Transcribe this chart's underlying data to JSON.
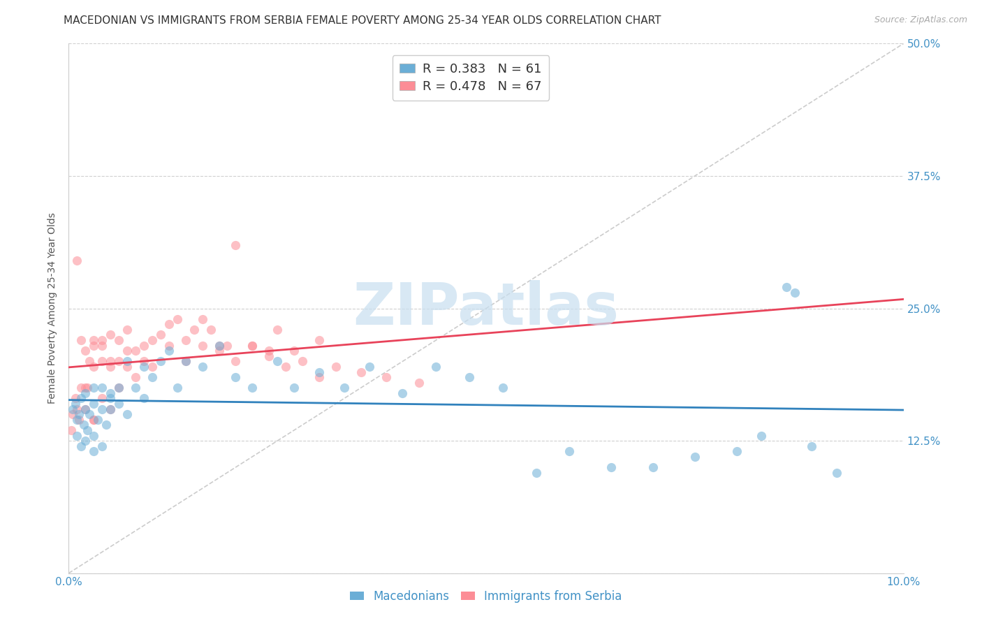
{
  "title": "MACEDONIAN VS IMMIGRANTS FROM SERBIA FEMALE POVERTY AMONG 25-34 YEAR OLDS CORRELATION CHART",
  "source": "Source: ZipAtlas.com",
  "ylabel": "Female Poverty Among 25-34 Year Olds",
  "xlim": [
    0.0,
    0.1
  ],
  "ylim": [
    0.0,
    0.5
  ],
  "xticks": [
    0.0,
    0.02,
    0.04,
    0.06,
    0.08,
    0.1
  ],
  "xticklabels": [
    "0.0%",
    "",
    "",
    "",
    "",
    "10.0%"
  ],
  "yticks": [
    0.0,
    0.125,
    0.25,
    0.375,
    0.5
  ],
  "yticklabels": [
    "",
    "12.5%",
    "25.0%",
    "37.5%",
    "50.0%"
  ],
  "macedonians_R": 0.383,
  "macedonians_N": 61,
  "serbia_R": 0.478,
  "serbia_N": 67,
  "blue_color": "#6baed6",
  "pink_color": "#fc8d96",
  "blue_line_color": "#3182bd",
  "pink_line_color": "#e8435a",
  "diagonal_color": "#cccccc",
  "macedonians_x": [
    0.0005,
    0.0008,
    0.001,
    0.001,
    0.0012,
    0.0015,
    0.0015,
    0.0018,
    0.002,
    0.002,
    0.002,
    0.0022,
    0.0025,
    0.003,
    0.003,
    0.003,
    0.003,
    0.0035,
    0.004,
    0.004,
    0.004,
    0.0045,
    0.005,
    0.005,
    0.005,
    0.006,
    0.006,
    0.007,
    0.007,
    0.008,
    0.009,
    0.009,
    0.01,
    0.011,
    0.012,
    0.013,
    0.014,
    0.016,
    0.018,
    0.02,
    0.022,
    0.025,
    0.027,
    0.03,
    0.033,
    0.036,
    0.04,
    0.044,
    0.048,
    0.052,
    0.056,
    0.06,
    0.065,
    0.07,
    0.075,
    0.08,
    0.083,
    0.086,
    0.089,
    0.092,
    0.087
  ],
  "macedonians_y": [
    0.155,
    0.16,
    0.13,
    0.145,
    0.15,
    0.12,
    0.165,
    0.14,
    0.125,
    0.155,
    0.17,
    0.135,
    0.15,
    0.115,
    0.13,
    0.16,
    0.175,
    0.145,
    0.12,
    0.155,
    0.175,
    0.14,
    0.155,
    0.17,
    0.165,
    0.16,
    0.175,
    0.15,
    0.2,
    0.175,
    0.165,
    0.195,
    0.185,
    0.2,
    0.21,
    0.175,
    0.2,
    0.195,
    0.215,
    0.185,
    0.175,
    0.2,
    0.175,
    0.19,
    0.175,
    0.195,
    0.17,
    0.195,
    0.185,
    0.175,
    0.095,
    0.115,
    0.1,
    0.1,
    0.11,
    0.115,
    0.13,
    0.27,
    0.12,
    0.095,
    0.265
  ],
  "serbia_x": [
    0.0003,
    0.0005,
    0.0008,
    0.001,
    0.001,
    0.0012,
    0.0015,
    0.0015,
    0.002,
    0.002,
    0.002,
    0.0022,
    0.0025,
    0.003,
    0.003,
    0.003,
    0.003,
    0.004,
    0.004,
    0.004,
    0.005,
    0.005,
    0.005,
    0.006,
    0.006,
    0.007,
    0.007,
    0.008,
    0.009,
    0.01,
    0.011,
    0.012,
    0.013,
    0.014,
    0.015,
    0.016,
    0.017,
    0.018,
    0.019,
    0.02,
    0.022,
    0.024,
    0.025,
    0.027,
    0.03,
    0.003,
    0.004,
    0.005,
    0.006,
    0.007,
    0.008,
    0.009,
    0.01,
    0.012,
    0.014,
    0.016,
    0.018,
    0.02,
    0.022,
    0.024,
    0.026,
    0.028,
    0.03,
    0.032,
    0.035,
    0.038,
    0.042
  ],
  "serbia_y": [
    0.135,
    0.15,
    0.165,
    0.155,
    0.295,
    0.145,
    0.175,
    0.22,
    0.155,
    0.175,
    0.21,
    0.175,
    0.2,
    0.145,
    0.195,
    0.215,
    0.22,
    0.165,
    0.2,
    0.22,
    0.155,
    0.195,
    0.225,
    0.175,
    0.2,
    0.195,
    0.23,
    0.21,
    0.215,
    0.22,
    0.225,
    0.235,
    0.24,
    0.22,
    0.23,
    0.24,
    0.23,
    0.215,
    0.215,
    0.31,
    0.215,
    0.21,
    0.23,
    0.21,
    0.22,
    0.145,
    0.215,
    0.2,
    0.22,
    0.21,
    0.185,
    0.2,
    0.195,
    0.215,
    0.2,
    0.215,
    0.21,
    0.2,
    0.215,
    0.205,
    0.195,
    0.2,
    0.185,
    0.195,
    0.19,
    0.185,
    0.18
  ],
  "watermark_text": "ZIPatlas",
  "watermark_color": "#c8dff0",
  "title_fontsize": 11,
  "axis_label_fontsize": 10,
  "tick_fontsize": 11,
  "legend_fontsize": 13
}
